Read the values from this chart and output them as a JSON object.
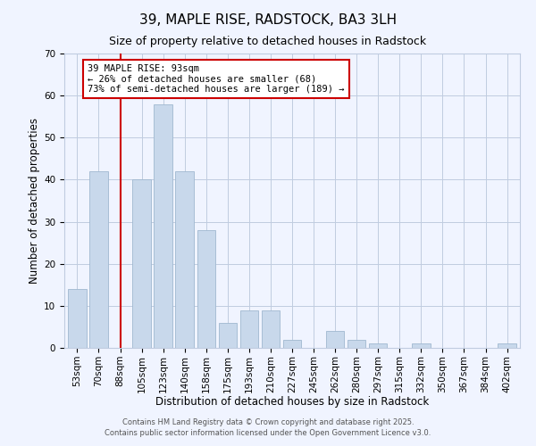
{
  "title": "39, MAPLE RISE, RADSTOCK, BA3 3LH",
  "subtitle": "Size of property relative to detached houses in Radstock",
  "xlabel": "Distribution of detached houses by size in Radstock",
  "ylabel": "Number of detached properties",
  "bar_color": "#c8d8eb",
  "bar_edge_color": "#a0b8d0",
  "background_color": "#f0f4ff",
  "grid_color": "#c0cce0",
  "categories": [
    "53sqm",
    "70sqm",
    "88sqm",
    "105sqm",
    "123sqm",
    "140sqm",
    "158sqm",
    "175sqm",
    "193sqm",
    "210sqm",
    "227sqm",
    "245sqm",
    "262sqm",
    "280sqm",
    "297sqm",
    "315sqm",
    "332sqm",
    "350sqm",
    "367sqm",
    "384sqm",
    "402sqm"
  ],
  "values": [
    14,
    42,
    0,
    40,
    58,
    42,
    28,
    6,
    9,
    9,
    2,
    0,
    4,
    2,
    1,
    0,
    1,
    0,
    0,
    0,
    1
  ],
  "ylim": [
    0,
    70
  ],
  "yticks": [
    0,
    10,
    20,
    30,
    40,
    50,
    60,
    70
  ],
  "property_line_x": 2.0,
  "property_label": "39 MAPLE RISE: 93sqm",
  "annotation_line1": "← 26% of detached houses are smaller (68)",
  "annotation_line2": "73% of semi-detached houses are larger (189) →",
  "annotation_box_color": "#ffffff",
  "annotation_border_color": "#cc0000",
  "property_line_color": "#cc0000",
  "footer1": "Contains HM Land Registry data © Crown copyright and database right 2025.",
  "footer2": "Contains public sector information licensed under the Open Government Licence v3.0.",
  "title_fontsize": 11,
  "subtitle_fontsize": 9,
  "axis_label_fontsize": 8.5,
  "tick_fontsize": 7.5,
  "annotation_fontsize": 7.5,
  "footer_fontsize": 6
}
